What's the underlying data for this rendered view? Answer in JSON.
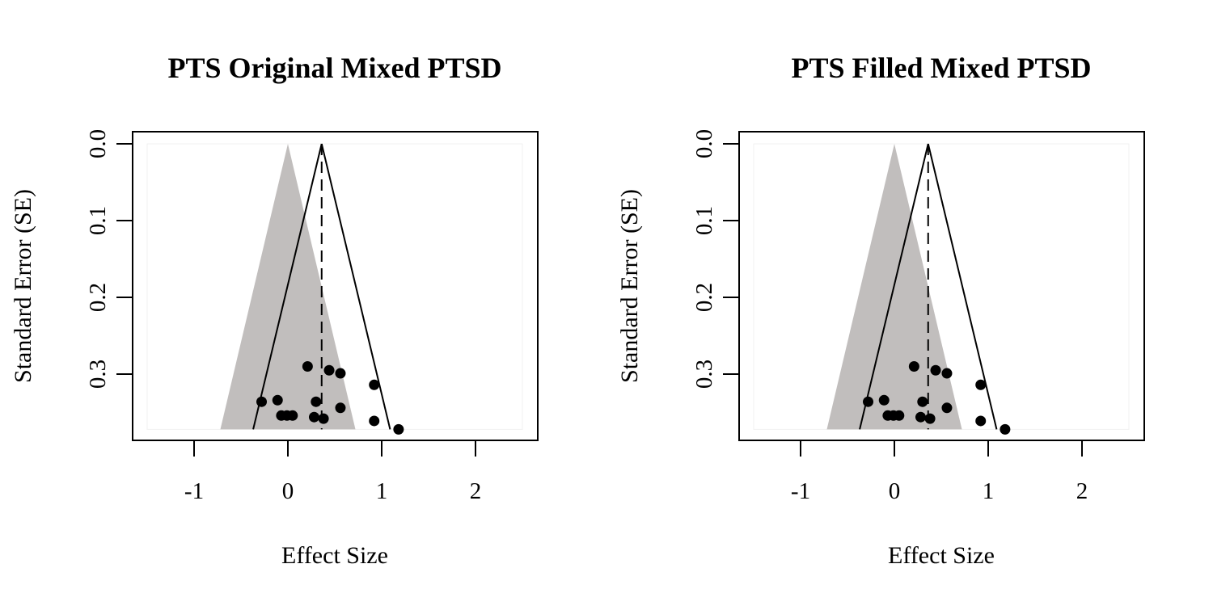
{
  "chart_data": [
    {
      "type": "scatter",
      "subtype": "funnel",
      "title": "PTS Original Mixed PTSD",
      "xlabel": "Effect Size",
      "ylabel": "Standard Error (SE)",
      "xlim": [
        -1.5,
        2.5
      ],
      "ylim": [
        0.0,
        0.37
      ],
      "y_reversed": true,
      "xticks": [
        "-1",
        "0",
        "1",
        "2"
      ],
      "yticks": [
        "0.0",
        "0.1",
        "0.2",
        "0.3"
      ],
      "pooled_estimate": 0.36,
      "funnel_lines": [
        {
          "from": [
            0.36,
            0.0
          ],
          "to": [
            -0.37,
            0.372
          ]
        },
        {
          "from": [
            0.36,
            0.0
          ],
          "to": [
            1.09,
            0.372
          ]
        }
      ],
      "null_region": {
        "apex": [
          0.0,
          0.0
        ],
        "left": [
          -0.72,
          0.372
        ],
        "right": [
          0.72,
          0.372
        ]
      },
      "points": [
        {
          "x": -0.28,
          "y": 0.336
        },
        {
          "x": -0.11,
          "y": 0.334
        },
        {
          "x": -0.07,
          "y": 0.354
        },
        {
          "x": -0.01,
          "y": 0.354
        },
        {
          "x": 0.05,
          "y": 0.354
        },
        {
          "x": 0.21,
          "y": 0.29
        },
        {
          "x": 0.28,
          "y": 0.356
        },
        {
          "x": 0.3,
          "y": 0.336
        },
        {
          "x": 0.38,
          "y": 0.358
        },
        {
          "x": 0.44,
          "y": 0.295
        },
        {
          "x": 0.56,
          "y": 0.299
        },
        {
          "x": 0.56,
          "y": 0.344
        },
        {
          "x": 0.92,
          "y": 0.314
        },
        {
          "x": 0.92,
          "y": 0.361
        },
        {
          "x": 1.18,
          "y": 0.372
        }
      ],
      "colors": {
        "region": "#c1bebd",
        "points": "#000000"
      }
    },
    {
      "type": "scatter",
      "subtype": "funnel",
      "title": "PTS Filled Mixed PTSD",
      "xlabel": "Effect Size",
      "ylabel": "Standard Error (SE)",
      "xlim": [
        -1.5,
        2.5
      ],
      "ylim": [
        0.0,
        0.37
      ],
      "y_reversed": true,
      "xticks": [
        "-1",
        "0",
        "1",
        "2"
      ],
      "yticks": [
        "0.0",
        "0.1",
        "0.2",
        "0.3"
      ],
      "pooled_estimate": 0.36,
      "funnel_lines": [
        {
          "from": [
            0.36,
            0.0
          ],
          "to": [
            -0.37,
            0.372
          ]
        },
        {
          "from": [
            0.36,
            0.0
          ],
          "to": [
            1.09,
            0.372
          ]
        }
      ],
      "null_region": {
        "apex": [
          0.0,
          0.0
        ],
        "left": [
          -0.72,
          0.372
        ],
        "right": [
          0.72,
          0.372
        ]
      },
      "points": [
        {
          "x": -0.28,
          "y": 0.336
        },
        {
          "x": -0.11,
          "y": 0.334
        },
        {
          "x": -0.07,
          "y": 0.354
        },
        {
          "x": -0.01,
          "y": 0.354
        },
        {
          "x": 0.05,
          "y": 0.354
        },
        {
          "x": 0.21,
          "y": 0.29
        },
        {
          "x": 0.28,
          "y": 0.356
        },
        {
          "x": 0.3,
          "y": 0.336
        },
        {
          "x": 0.38,
          "y": 0.358
        },
        {
          "x": 0.44,
          "y": 0.295
        },
        {
          "x": 0.56,
          "y": 0.299
        },
        {
          "x": 0.56,
          "y": 0.344
        },
        {
          "x": 0.92,
          "y": 0.314
        },
        {
          "x": 0.92,
          "y": 0.361
        },
        {
          "x": 1.18,
          "y": 0.372
        }
      ],
      "colors": {
        "region": "#c1bebd",
        "points": "#000000"
      }
    }
  ]
}
